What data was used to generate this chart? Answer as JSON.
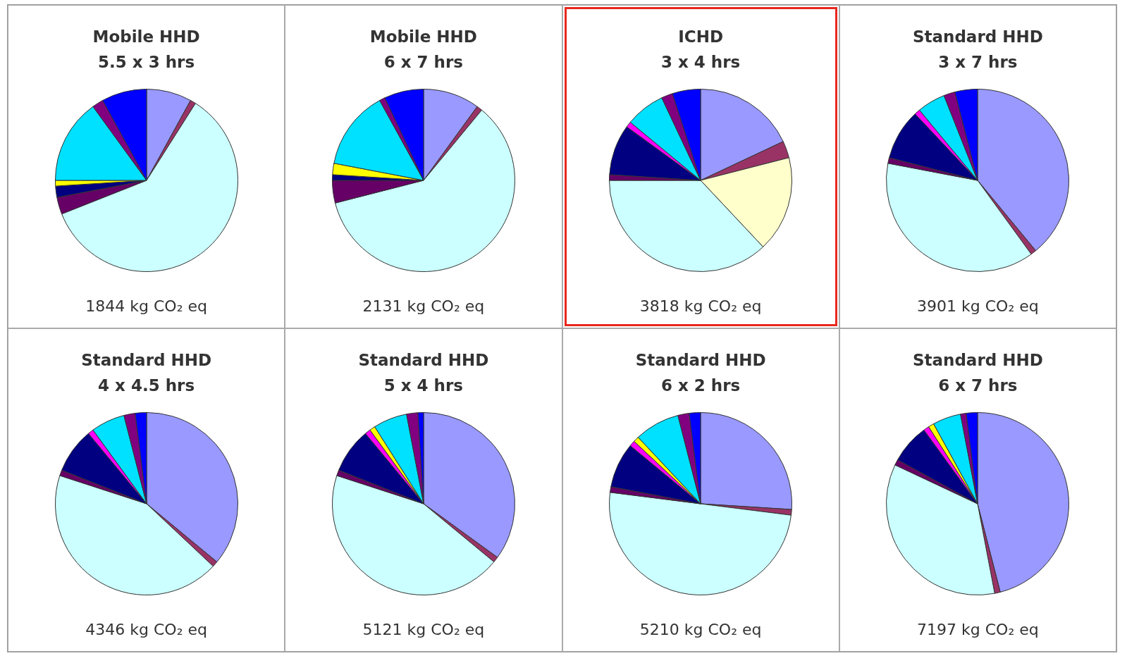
{
  "chart_data": [
    {
      "type": "pie",
      "title": "Mobile HHD",
      "subtitle": "5.5 x 3 hrs",
      "annotations": [
        "1844 kg CO₂ eq"
      ],
      "categories": [
        null,
        null,
        null,
        null,
        null,
        null,
        null,
        null,
        null,
        null,
        null
      ],
      "values": [
        8,
        1,
        0,
        60,
        3,
        2,
        0,
        1,
        15,
        2,
        8
      ],
      "colors": [
        "#9999ff",
        "#993366",
        "#ffffcc",
        "#ccffff",
        "#660066",
        "#000080",
        "#ff00ff",
        "#ffff00",
        "#00e0ff",
        "#800080",
        "#0000ff"
      ]
    },
    {
      "type": "pie",
      "title": "Mobile HHD",
      "subtitle": "6 x 7 hrs",
      "annotations": [
        "2131 kg CO₂ eq"
      ],
      "categories": [
        null,
        null,
        null,
        null,
        null,
        null,
        null,
        null,
        null,
        null,
        null
      ],
      "values": [
        10,
        1,
        0,
        60,
        4,
        1,
        0,
        2,
        14,
        1,
        7
      ],
      "colors": [
        "#9999ff",
        "#993366",
        "#ffffcc",
        "#ccffff",
        "#660066",
        "#000080",
        "#ff00ff",
        "#ffff00",
        "#00e0ff",
        "#800080",
        "#0000ff"
      ]
    },
    {
      "type": "pie",
      "title": "ICHD",
      "subtitle": "3 x 4 hrs",
      "annotations": [
        "3818 kg CO₂ eq"
      ],
      "categories": [
        null,
        null,
        null,
        null,
        null,
        null,
        null,
        null,
        null,
        null,
        null
      ],
      "values": [
        18,
        3,
        17,
        37,
        1,
        9,
        1,
        0,
        7,
        2,
        5
      ],
      "colors": [
        "#9999ff",
        "#993366",
        "#ffffcc",
        "#ccffff",
        "#660066",
        "#000080",
        "#ff00ff",
        "#ffff00",
        "#00e0ff",
        "#800080",
        "#0000ff"
      ]
    },
    {
      "type": "pie",
      "title": "Standard HHD",
      "subtitle": "3 x 7 hrs",
      "annotations": [
        "3901 kg CO₂ eq"
      ],
      "categories": [
        null,
        null,
        null,
        null,
        null,
        null,
        null,
        null,
        null,
        null,
        null
      ],
      "values": [
        39,
        1,
        0,
        38,
        1,
        9,
        1,
        0,
        5,
        2,
        4
      ],
      "colors": [
        "#9999ff",
        "#993366",
        "#ffffcc",
        "#ccffff",
        "#660066",
        "#000080",
        "#ff00ff",
        "#ffff00",
        "#00e0ff",
        "#800080",
        "#0000ff"
      ]
    },
    {
      "type": "pie",
      "title": "Standard HHD",
      "subtitle": "4 x 4.5 hrs",
      "annotations": [
        "4346 kg CO₂ eq"
      ],
      "categories": [
        null,
        null,
        null,
        null,
        null,
        null,
        null,
        null,
        null,
        null,
        null
      ],
      "values": [
        36,
        1,
        0,
        43,
        1,
        8,
        1,
        0,
        6,
        2,
        2
      ],
      "colors": [
        "#9999ff",
        "#993366",
        "#ffffcc",
        "#ccffff",
        "#660066",
        "#000080",
        "#ff00ff",
        "#ffff00",
        "#00e0ff",
        "#800080",
        "#0000ff"
      ]
    },
    {
      "type": "pie",
      "title": "Standard HHD",
      "subtitle": "5 x 4 hrs",
      "annotations": [
        "5121 kg CO₂ eq"
      ],
      "categories": [
        null,
        null,
        null,
        null,
        null,
        null,
        null,
        null,
        null,
        null,
        null
      ],
      "values": [
        35,
        1,
        0,
        44,
        1,
        8,
        1,
        1,
        6,
        2,
        1
      ],
      "colors": [
        "#9999ff",
        "#993366",
        "#ffffcc",
        "#ccffff",
        "#660066",
        "#000080",
        "#ff00ff",
        "#ffff00",
        "#00e0ff",
        "#800080",
        "#0000ff"
      ]
    },
    {
      "type": "pie",
      "title": "Standard HHD",
      "subtitle": "6 x 2 hrs",
      "annotations": [
        "5210 kg CO₂ eq"
      ],
      "categories": [
        null,
        null,
        null,
        null,
        null,
        null,
        null,
        null,
        null,
        null,
        null
      ],
      "values": [
        26,
        1,
        0,
        50,
        1,
        8,
        1,
        1,
        8,
        2,
        2
      ],
      "colors": [
        "#9999ff",
        "#993366",
        "#ffffcc",
        "#ccffff",
        "#660066",
        "#000080",
        "#ff00ff",
        "#ffff00",
        "#00e0ff",
        "#800080",
        "#0000ff"
      ]
    },
    {
      "type": "pie",
      "title": "Standard HHD",
      "subtitle": "6 x 7 hrs",
      "annotations": [
        "7197 kg CO₂ eq"
      ],
      "categories": [
        null,
        null,
        null,
        null,
        null,
        null,
        null,
        null,
        null,
        null,
        null
      ],
      "values": [
        46,
        1,
        0,
        35,
        1,
        7,
        1,
        1,
        5,
        1,
        2
      ],
      "colors": [
        "#9999ff",
        "#993366",
        "#ffffcc",
        "#ccffff",
        "#660066",
        "#000080",
        "#ff00ff",
        "#ffff00",
        "#00e0ff",
        "#800080",
        "#0000ff"
      ]
    }
  ]
}
